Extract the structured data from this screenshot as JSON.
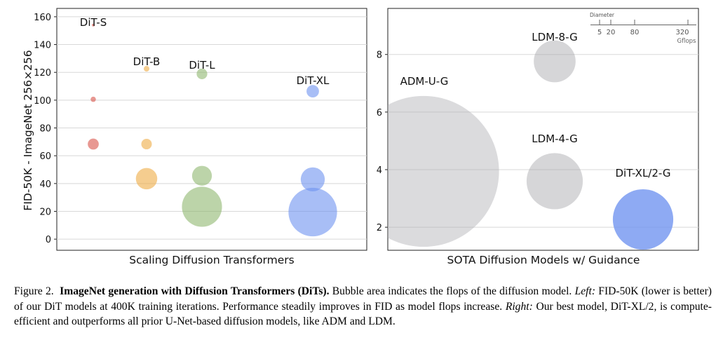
{
  "chart_data": [
    {
      "type": "scatter",
      "title": "Scaling Diffusion Transformers",
      "xlabel": "",
      "ylabel": "FID-50K - ImageNet 256×256",
      "ylim": [
        -8,
        166
      ],
      "yticks": [
        0,
        20,
        40,
        60,
        80,
        100,
        120,
        140,
        160
      ],
      "grid": "horizontal",
      "categories": [
        "DiT-S",
        "DiT-B",
        "DiT-L",
        "DiT-XL"
      ],
      "series": [
        {
          "name": "DiT-S",
          "color": "#d9534a",
          "points": [
            {
              "y": 154,
              "flops": 0.4
            },
            {
              "y": 100.6,
              "flops": 1.4
            },
            {
              "y": 68.4,
              "flops": 6.1
            }
          ]
        },
        {
          "name": "DiT-B",
          "color": "#eeab45",
          "points": [
            {
              "y": 122.6,
              "flops": 1.6
            },
            {
              "y": 68.4,
              "flops": 5.6
            },
            {
              "y": 43.5,
              "flops": 23
            }
          ]
        },
        {
          "name": "DiT-L",
          "color": "#8fb770",
          "points": [
            {
              "y": 118.9,
              "flops": 5.7
            },
            {
              "y": 45.6,
              "flops": 19.7
            },
            {
              "y": 23.3,
              "flops": 80.7
            }
          ]
        },
        {
          "name": "DiT-XL",
          "color": "#6e92f0",
          "points": [
            {
              "y": 106.4,
              "flops": 7.8
            },
            {
              "y": 43.0,
              "flops": 29.1
            },
            {
              "y": 19.5,
              "flops": 118.6
            }
          ]
        }
      ]
    },
    {
      "type": "scatter",
      "title": "SOTA Diffusion Models w/ Guidance",
      "xlabel": "",
      "ylabel": "",
      "ylim": [
        1.2,
        9.6
      ],
      "yticks": [
        2,
        4,
        6,
        8
      ],
      "grid": "horizontal",
      "points": [
        {
          "label": "ADM-U-G",
          "y": 3.94,
          "flops": 742,
          "color": "#b0b0b4"
        },
        {
          "label": "LDM-8-G",
          "y": 7.76,
          "flops": 57,
          "color": "#a3a3a8"
        },
        {
          "label": "LDM-4-G",
          "y": 3.6,
          "flops": 103,
          "color": "#a3a3a8"
        },
        {
          "label": "DiT-XL/2-G",
          "y": 2.27,
          "flops": 119,
          "color": "#6e92f0"
        }
      ],
      "size_legend": {
        "title": "Diameter",
        "values": [
          "5",
          "20",
          "80",
          "320"
        ],
        "unit": "Gflops"
      }
    }
  ],
  "caption": {
    "fig_label": "Figure 2.",
    "bold_title": "ImageNet generation with Diffusion Transformers (DiTs).",
    "text1": " Bubble area indicates the flops of the diffusion model. ",
    "left_label": "Left:",
    "text2": " FID-50K (lower is better) of our DiT models at 400K training iterations. Performance steadily improves in FID as model flops increase. ",
    "right_label": "Right:",
    "text3": " Our best model, DiT-XL/2, is compute-efficient and outperforms all prior U-Net-based diffusion models, like ADM and LDM."
  }
}
